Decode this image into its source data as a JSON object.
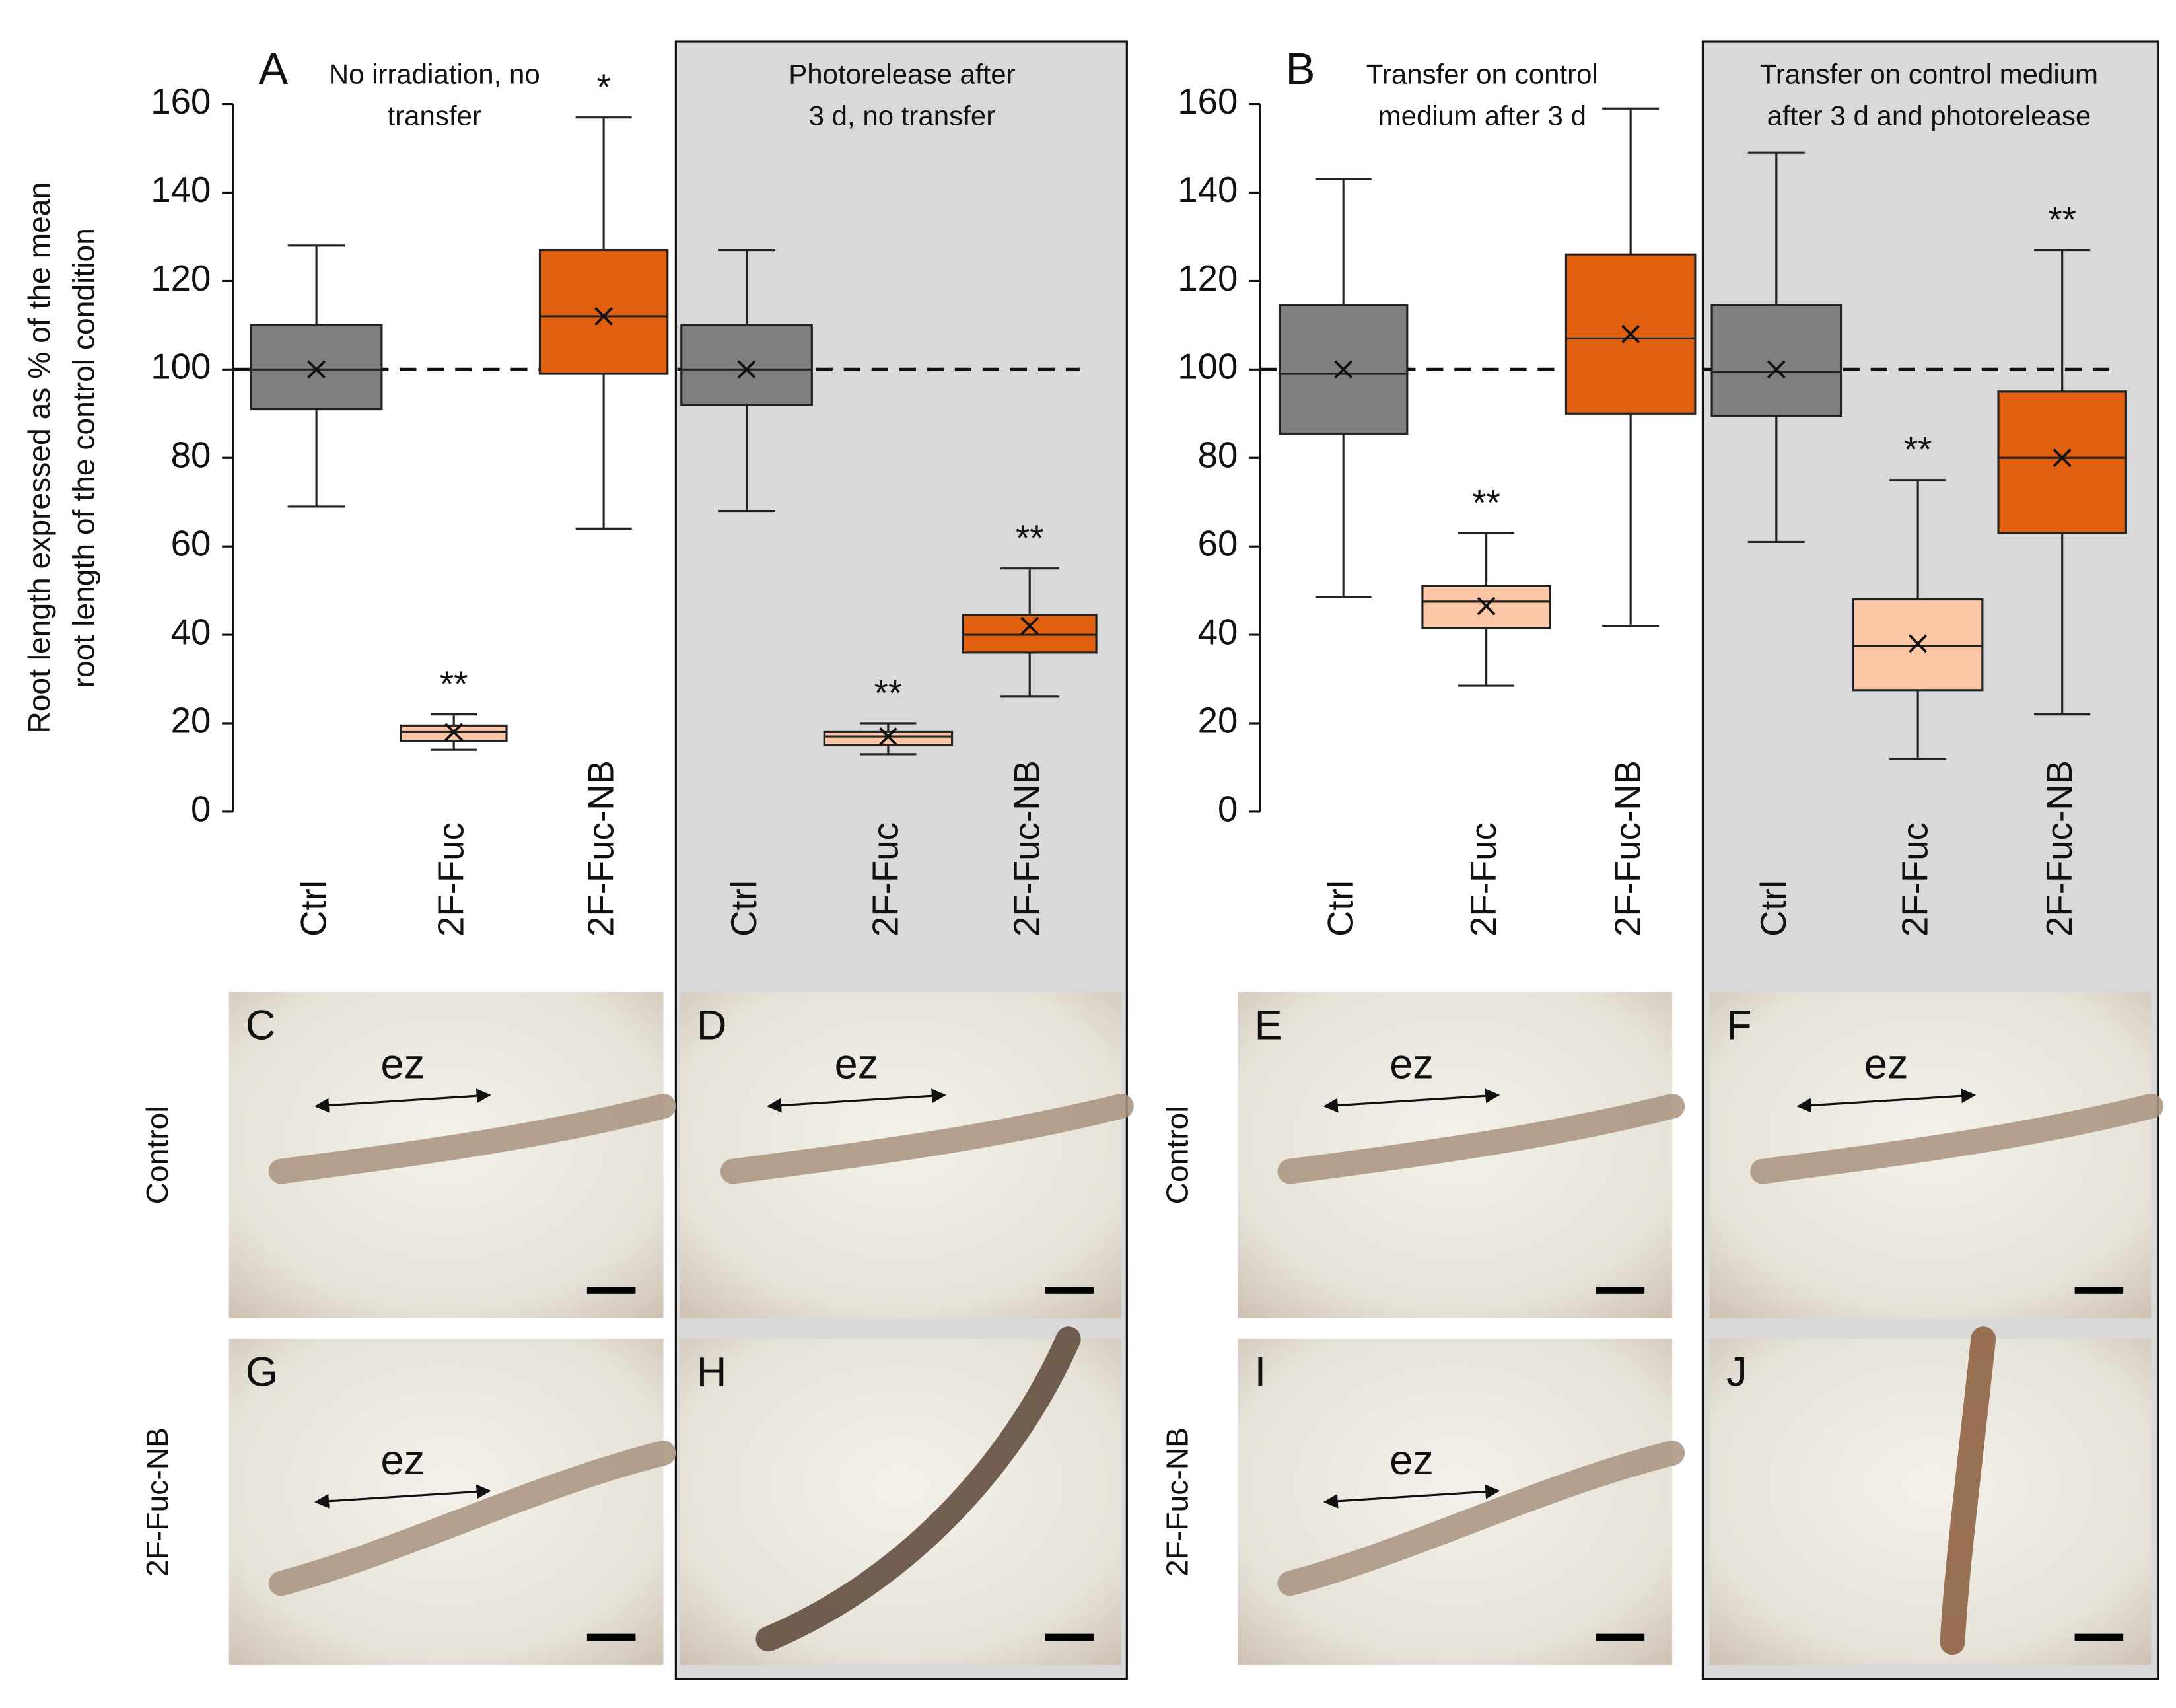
{
  "chart_data": [
    {
      "type": "box",
      "panel_label": "A",
      "ylabel": [
        "Root length expressed as % of the mean",
        "root length of the control condition"
      ],
      "ylim": [
        0,
        160
      ],
      "yticks": [
        0,
        20,
        40,
        60,
        80,
        100,
        120,
        140,
        160
      ],
      "reference_line": 100,
      "colors": [
        "#7f7f7f",
        "#fbc6a5",
        "#e0600f"
      ],
      "groups": [
        {
          "title": [
            "No irradiation, no",
            "transfer"
          ],
          "categories": [
            "Ctrl",
            "2F-Fuc",
            "2F-Fuc-NB"
          ],
          "boxes": [
            {
              "whisker_low": 69,
              "q1": 91,
              "median": 100,
              "q3": 110,
              "whisker_high": 128,
              "mean": 100
            },
            {
              "whisker_low": 14,
              "q1": 16,
              "median": 18,
              "q3": 19.5,
              "whisker_high": 22,
              "mean": 18,
              "annotation": "**"
            },
            {
              "whisker_low": 64,
              "q1": 99,
              "median": 112,
              "q3": 127,
              "whisker_high": 157,
              "mean": 112,
              "annotation": "*"
            }
          ]
        },
        {
          "title": [
            "Photorelease after",
            "3 d, no transfer"
          ],
          "categories": [
            "Ctrl",
            "2F-Fuc",
            "2F-Fuc-NB"
          ],
          "boxes": [
            {
              "whisker_low": 68,
              "q1": 92,
              "median": 100,
              "q3": 110,
              "whisker_high": 127,
              "mean": 100
            },
            {
              "whisker_low": 13,
              "q1": 15,
              "median": 17,
              "q3": 18,
              "whisker_high": 20,
              "mean": 17,
              "annotation": "**"
            },
            {
              "whisker_low": 26,
              "q1": 36,
              "median": 40,
              "q3": 44.5,
              "whisker_high": 55,
              "mean": 42,
              "annotation": "**"
            }
          ]
        }
      ],
      "micrographs": [
        {
          "row_label": "Control",
          "panels": [
            {
              "label": "C",
              "annotation": "ez"
            },
            {
              "label": "D",
              "annotation": "ez"
            }
          ]
        },
        {
          "row_label": "2F-Fuc-NB",
          "panels": [
            {
              "label": "G",
              "annotation": "ez"
            },
            {
              "label": "H"
            }
          ]
        }
      ]
    },
    {
      "type": "box",
      "panel_label": "B",
      "ylim": [
        0,
        160
      ],
      "yticks": [
        0,
        20,
        40,
        60,
        80,
        100,
        120,
        140,
        160
      ],
      "reference_line": 100,
      "colors": [
        "#7f7f7f",
        "#fbc6a5",
        "#e0600f"
      ],
      "groups": [
        {
          "title": [
            "Transfer on control",
            "medium after 3 d"
          ],
          "categories": [
            "Ctrl",
            "2F-Fuc",
            "2F-Fuc-NB"
          ],
          "boxes": [
            {
              "whisker_low": 48.5,
              "q1": 85.5,
              "median": 99,
              "q3": 114.5,
              "whisker_high": 143,
              "mean": 100
            },
            {
              "whisker_low": 28.5,
              "q1": 41.5,
              "median": 47.5,
              "q3": 51,
              "whisker_high": 63,
              "mean": 46.5,
              "annotation": "**"
            },
            {
              "whisker_low": 42,
              "q1": 90,
              "median": 107,
              "q3": 126,
              "whisker_high": 159,
              "mean": 108
            }
          ]
        },
        {
          "title": [
            "Transfer on control medium",
            "after 3 d and photorelease"
          ],
          "categories": [
            "Ctrl",
            "2F-Fuc",
            "2F-Fuc-NB"
          ],
          "boxes": [
            {
              "whisker_low": 61,
              "q1": 89.5,
              "median": 99.5,
              "q3": 114.5,
              "whisker_high": 149,
              "mean": 100
            },
            {
              "whisker_low": 12,
              "q1": 27.5,
              "median": 37.5,
              "q3": 48,
              "whisker_high": 75,
              "mean": 38,
              "annotation": "**"
            },
            {
              "whisker_low": 22,
              "q1": 63,
              "median": 80,
              "q3": 95,
              "whisker_high": 127,
              "mean": 80,
              "annotation": "**"
            }
          ]
        }
      ],
      "micrographs": [
        {
          "row_label": "Control",
          "panels": [
            {
              "label": "E",
              "annotation": "ez"
            },
            {
              "label": "F",
              "annotation": "ez"
            }
          ]
        },
        {
          "row_label": "2F-Fuc-NB",
          "panels": [
            {
              "label": "I",
              "annotation": "ez"
            },
            {
              "label": "J"
            }
          ]
        }
      ]
    }
  ]
}
